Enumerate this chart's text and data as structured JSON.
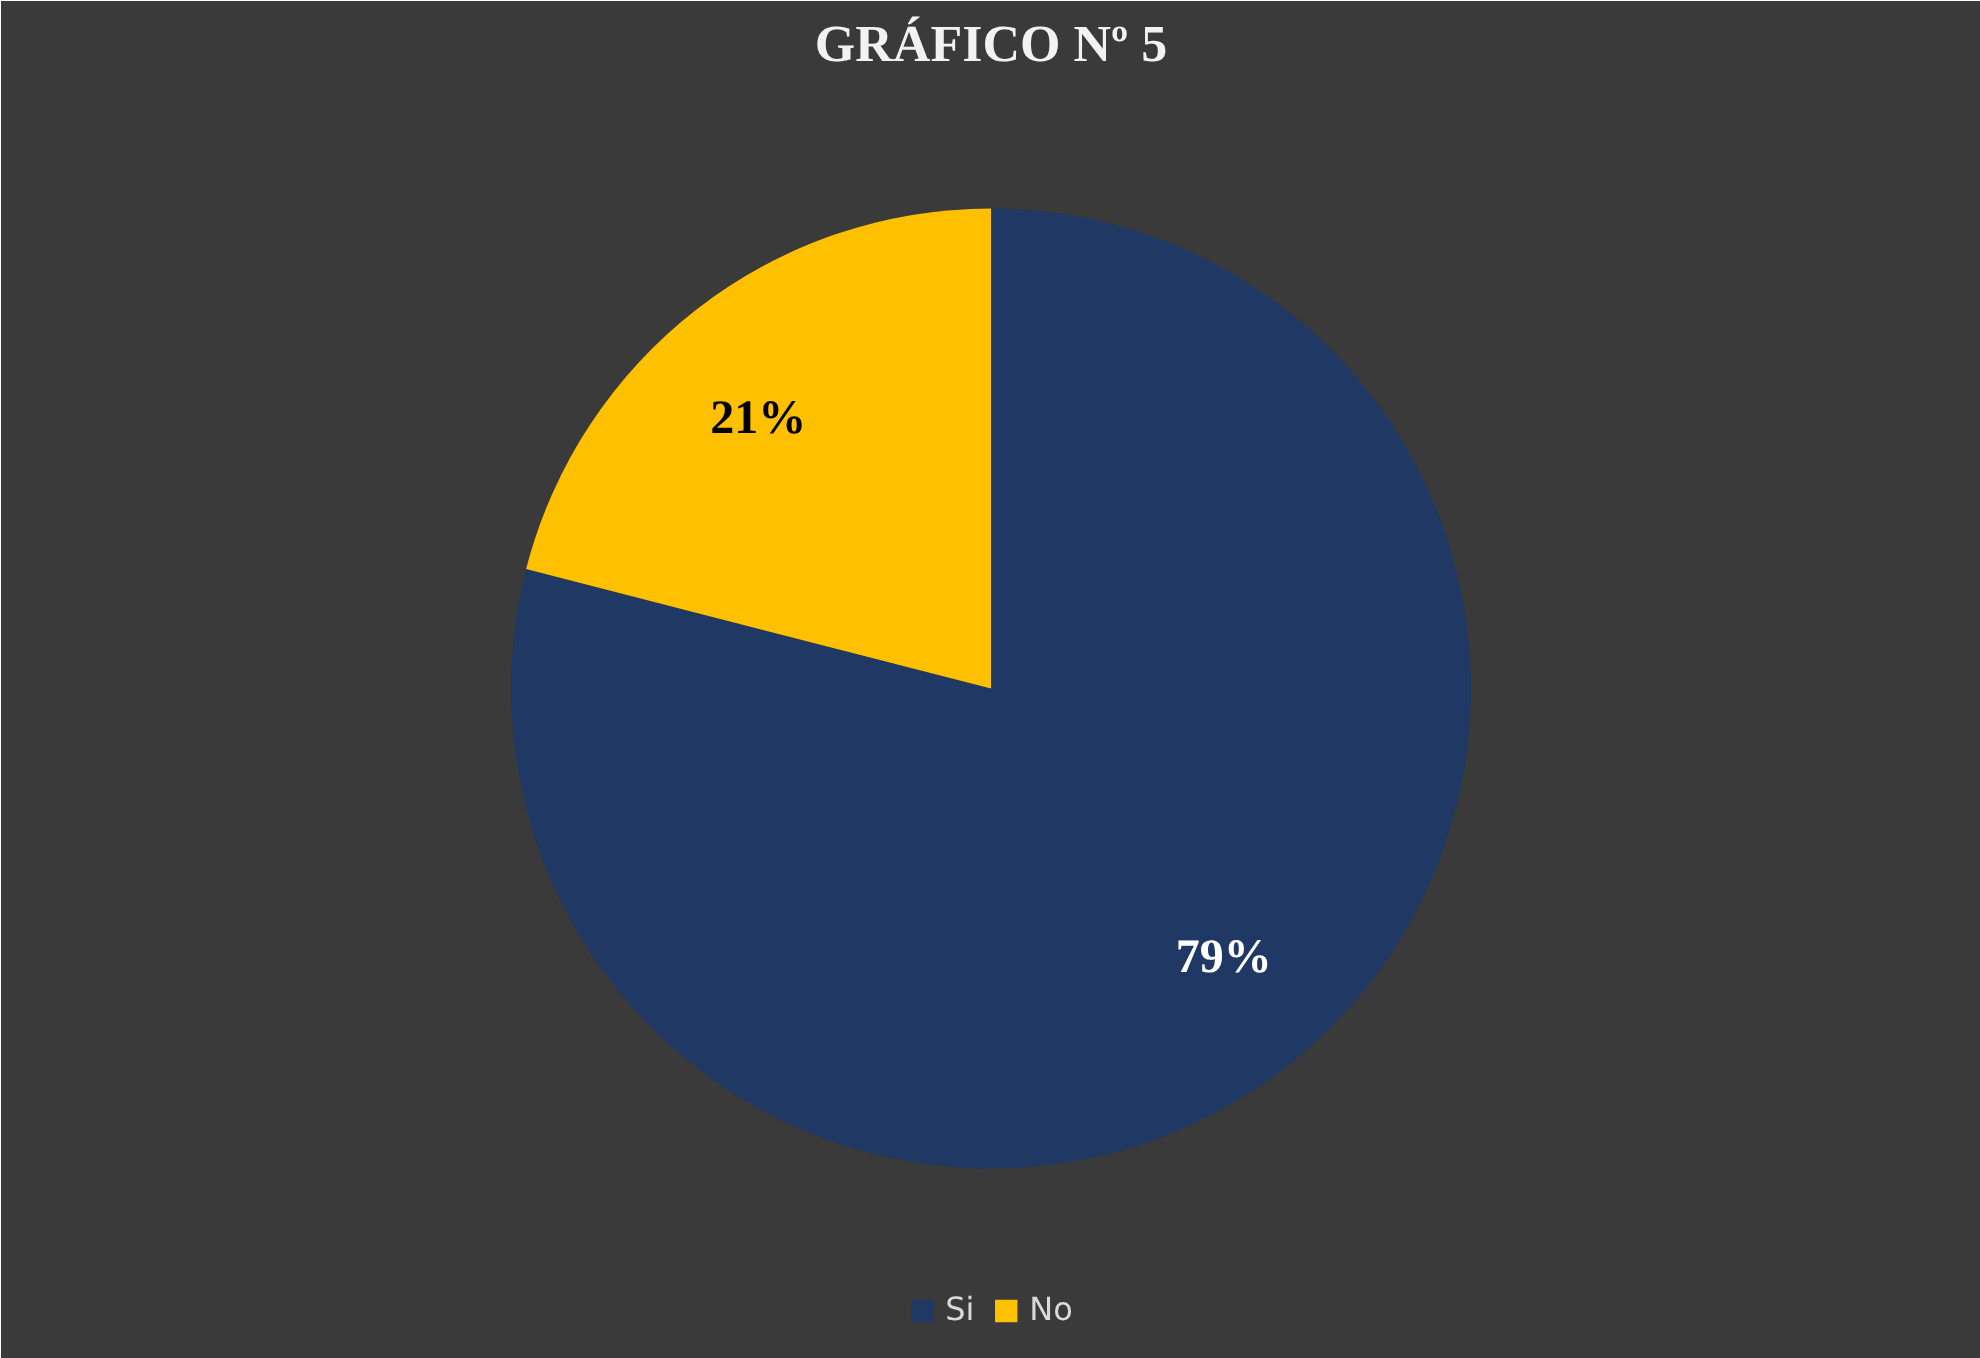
{
  "chart_data": {
    "type": "pie",
    "title": "GRÁFICO Nº 5",
    "categories": [
      "Si",
      "No"
    ],
    "values": [
      79,
      21
    ],
    "colors": [
      "#1f3864",
      "#ffc000"
    ],
    "value_labels": [
      "79%",
      "21%"
    ],
    "legend": "bottom"
  }
}
